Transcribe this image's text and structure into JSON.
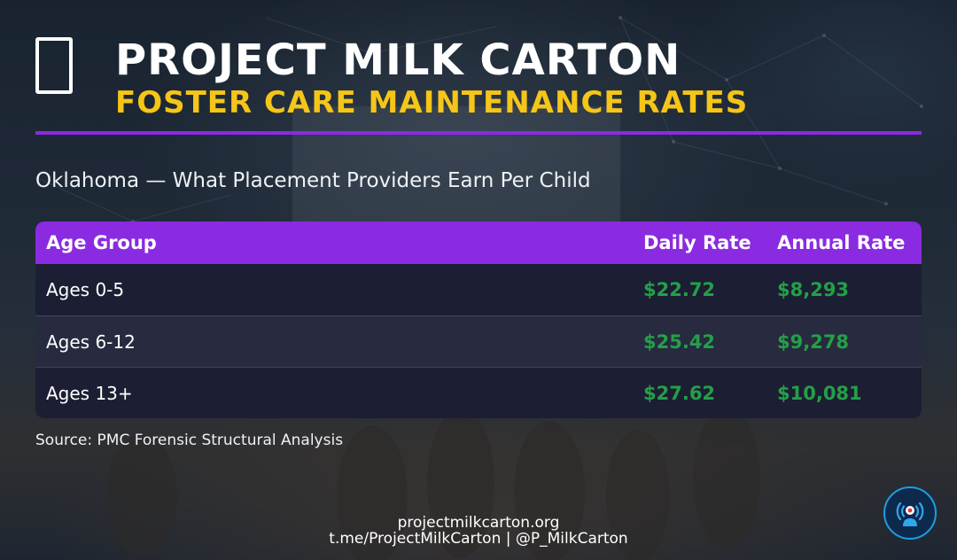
{
  "header": {
    "icon": "milk-carton-glyph",
    "title": "PROJECT MILK CARTON",
    "subtitle": "FOSTER CARE MAINTENANCE RATES",
    "accent_color": "#8a2be2",
    "subtitle_color": "#f5c518"
  },
  "location_line": "Oklahoma — What Placement Providers Earn Per Child",
  "table": {
    "headers": {
      "age_group": "Age Group",
      "daily_rate": "Daily Rate",
      "annual_rate": "Annual Rate"
    },
    "header_color": "#8a2be2",
    "money_color": "#23a047",
    "rows": [
      {
        "age_group": "Ages 0-5",
        "daily_rate": "$22.72",
        "annual_rate": "$8,293"
      },
      {
        "age_group": "Ages 6-12",
        "daily_rate": "$25.42",
        "annual_rate": "$9,278"
      },
      {
        "age_group": "Ages 13+",
        "daily_rate": "$27.62",
        "annual_rate": "$10,081"
      }
    ]
  },
  "source": "Source: PMC Forensic Structural Analysis",
  "footer": {
    "website": "projectmilkcarton.org",
    "social": "t.me/ProjectMilkCarton | @P_MilkCarton",
    "badge_icon": "broadcast-person-icon"
  }
}
